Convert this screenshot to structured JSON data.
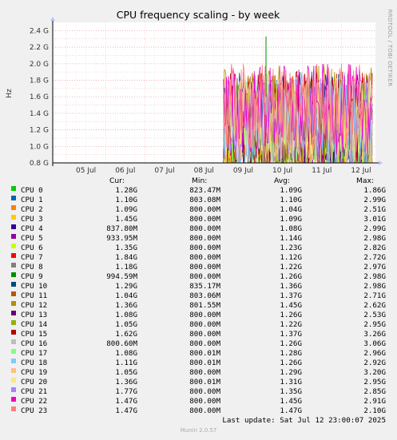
{
  "chart_data": {
    "type": "line",
    "title": "CPU frequency scaling - by week",
    "ylabel": "Hz",
    "side_label": "RRDTOOL / TOBI OETIKER",
    "x_ticks": [
      "05 Jul",
      "06 Jul",
      "07 Jul",
      "08 Jul",
      "09 Jul",
      "10 Jul",
      "11 Jul",
      "12 Jul"
    ],
    "y_ticks": [
      "0.8 G",
      "1.0 G",
      "1.2 G",
      "1.4 G",
      "1.6 G",
      "1.8 G",
      "2.0 G",
      "2.2 G",
      "2.4 G"
    ],
    "ylim": [
      0.8,
      2.5
    ],
    "grid": true,
    "data_start_day": "09 Jul",
    "spike": {
      "day": "10 Jul",
      "value": 2.33
    },
    "columns": [
      "Cur:",
      "Min:",
      "Avg:",
      "Max:"
    ],
    "series": [
      {
        "name": "CPU 0",
        "color": "#00cc00",
        "cur": "1.28G",
        "min": "823.47M",
        "avg": "1.09G",
        "max": "1.86G"
      },
      {
        "name": "CPU 1",
        "color": "#0066b3",
        "cur": "1.10G",
        "min": "803.08M",
        "avg": "1.10G",
        "max": "2.99G"
      },
      {
        "name": "CPU 2",
        "color": "#ff8000",
        "cur": "1.09G",
        "min": "800.00M",
        "avg": "1.04G",
        "max": "2.51G"
      },
      {
        "name": "CPU 3",
        "color": "#ffcc00",
        "cur": "1.45G",
        "min": "800.00M",
        "avg": "1.09G",
        "max": "3.01G"
      },
      {
        "name": "CPU 4",
        "color": "#330099",
        "cur": "837.80M",
        "min": "800.00M",
        "avg": "1.08G",
        "max": "2.99G"
      },
      {
        "name": "CPU 5",
        "color": "#990099",
        "cur": "933.95M",
        "min": "800.00M",
        "avg": "1.14G",
        "max": "2.98G"
      },
      {
        "name": "CPU 6",
        "color": "#ccff00",
        "cur": "1.35G",
        "min": "800.00M",
        "avg": "1.23G",
        "max": "2.82G"
      },
      {
        "name": "CPU 7",
        "color": "#ff0000",
        "cur": "1.84G",
        "min": "800.00M",
        "avg": "1.12G",
        "max": "2.72G"
      },
      {
        "name": "CPU 8",
        "color": "#808080",
        "cur": "1.18G",
        "min": "800.00M",
        "avg": "1.22G",
        "max": "2.97G"
      },
      {
        "name": "CPU 9",
        "color": "#008f00",
        "cur": "994.59M",
        "min": "800.00M",
        "avg": "1.26G",
        "max": "2.98G"
      },
      {
        "name": "CPU 10",
        "color": "#00487d",
        "cur": "1.29G",
        "min": "835.17M",
        "avg": "1.36G",
        "max": "2.98G"
      },
      {
        "name": "CPU 11",
        "color": "#b35a00",
        "cur": "1.04G",
        "min": "803.06M",
        "avg": "1.37G",
        "max": "2.71G"
      },
      {
        "name": "CPU 12",
        "color": "#b38f00",
        "cur": "1.36G",
        "min": "801.55M",
        "avg": "1.45G",
        "max": "2.62G"
      },
      {
        "name": "CPU 13",
        "color": "#6b006b",
        "cur": "1.08G",
        "min": "800.00M",
        "avg": "1.26G",
        "max": "2.53G"
      },
      {
        "name": "CPU 14",
        "color": "#8fb300",
        "cur": "1.05G",
        "min": "800.00M",
        "avg": "1.22G",
        "max": "2.95G"
      },
      {
        "name": "CPU 15",
        "color": "#b30000",
        "cur": "1.62G",
        "min": "800.00M",
        "avg": "1.37G",
        "max": "3.26G"
      },
      {
        "name": "CPU 16",
        "color": "#bebebe",
        "cur": "800.60M",
        "min": "800.00M",
        "avg": "1.26G",
        "max": "3.06G"
      },
      {
        "name": "CPU 17",
        "color": "#80ff80",
        "cur": "1.08G",
        "min": "800.01M",
        "avg": "1.28G",
        "max": "2.96G"
      },
      {
        "name": "CPU 18",
        "color": "#80c9ff",
        "cur": "1.11G",
        "min": "800.01M",
        "avg": "1.26G",
        "max": "2.92G"
      },
      {
        "name": "CPU 19",
        "color": "#ffc080",
        "cur": "1.05G",
        "min": "800.00M",
        "avg": "1.29G",
        "max": "3.20G"
      },
      {
        "name": "CPU 20",
        "color": "#ffe680",
        "cur": "1.36G",
        "min": "800.01M",
        "avg": "1.31G",
        "max": "2.95G"
      },
      {
        "name": "CPU 21",
        "color": "#aa80ff",
        "cur": "1.77G",
        "min": "800.00M",
        "avg": "1.35G",
        "max": "2.85G"
      },
      {
        "name": "CPU 22",
        "color": "#ee00cc",
        "cur": "1.47G",
        "min": "800.00M",
        "avg": "1.45G",
        "max": "2.91G"
      },
      {
        "name": "CPU 23",
        "color": "#ff8080",
        "cur": "1.47G",
        "min": "800.00M",
        "avg": "1.47G",
        "max": "2.10G"
      }
    ]
  },
  "footer": {
    "last_update": "Last update: Sat Jul 12 23:00:07 2025",
    "version": "Munin 2.0.57"
  }
}
